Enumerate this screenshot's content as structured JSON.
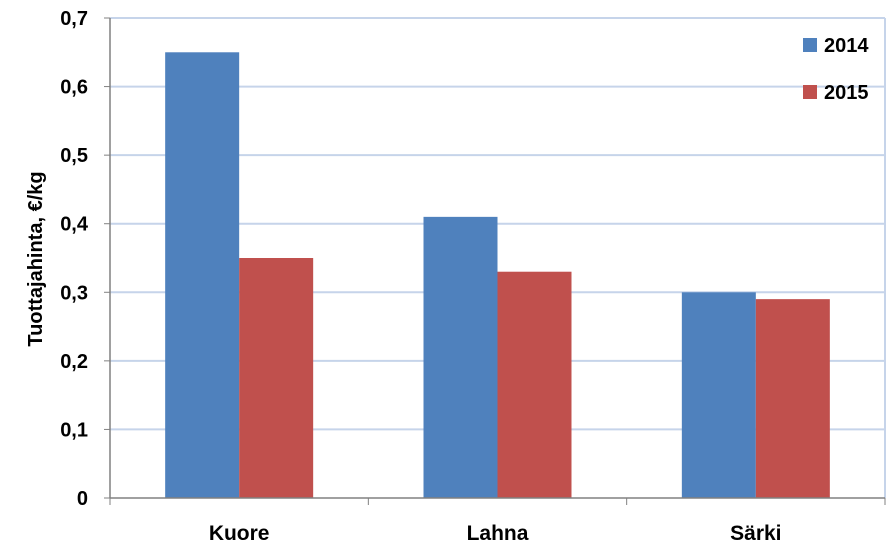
{
  "chart_data": {
    "type": "bar",
    "title": "",
    "xlabel": "",
    "ylabel": "Tuottajahinta,  €/kg",
    "categories": [
      "Kuore",
      "Lahna",
      "Särki"
    ],
    "series": [
      {
        "name": "2014",
        "color": "#4F81BD",
        "values": [
          0.65,
          0.41,
          0.3
        ]
      },
      {
        "name": "2015",
        "color": "#C0504D",
        "values": [
          0.35,
          0.33,
          0.29
        ]
      }
    ],
    "ylim": [
      0,
      0.7
    ],
    "yticks": [
      0,
      0.1,
      0.2,
      0.3,
      0.4,
      0.5,
      0.6,
      0.7
    ],
    "ytick_labels": [
      "0",
      "0,1",
      "0,2",
      "0,3",
      "0,4",
      "0,5",
      "0,6",
      "0,7"
    ],
    "grid": true,
    "gridline_color": "#C6D4EA",
    "legend_position": "top-right"
  }
}
